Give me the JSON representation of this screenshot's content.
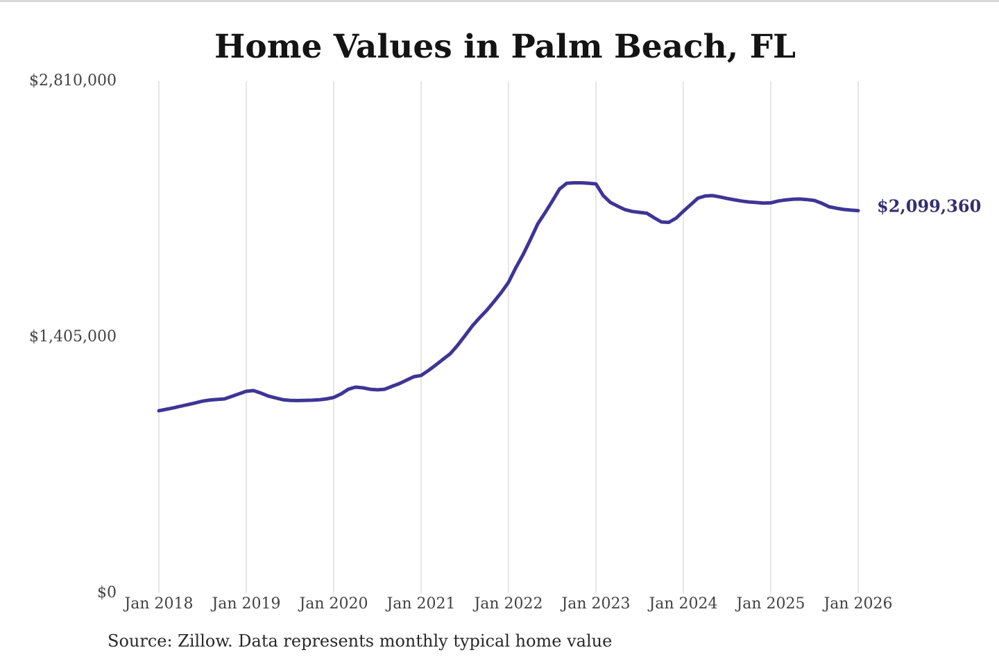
{
  "page": {
    "background_color": "#ffffff"
  },
  "chart_data": {
    "type": "line",
    "title": "Home Values in Palm Beach, FL",
    "source": "Source: Zillow. Data represents monthly typical home value",
    "latest_value_label": "$2,099,360",
    "latest_value": 2099360,
    "line_color": "#3e3596",
    "label_color": "#34306e",
    "grid_color": "#cccccc",
    "axis_label_color": "#424242",
    "grid": "vertical-only",
    "legend": "none",
    "ylim": [
      0,
      2810000
    ],
    "y_ticks": [
      {
        "label": "$2,810,000",
        "value": 2810000
      },
      {
        "label": "$1,405,000",
        "value": 1405000
      },
      {
        "label": "$0",
        "value": 0
      }
    ],
    "x_ticks": [
      {
        "label": "Jan 2018",
        "month_index": 0
      },
      {
        "label": "Jan 2019",
        "month_index": 12
      },
      {
        "label": "Jan 2020",
        "month_index": 24
      },
      {
        "label": "Jan 2021",
        "month_index": 36
      },
      {
        "label": "Jan 2022",
        "month_index": 48
      },
      {
        "label": "Jan 2023",
        "month_index": 60
      },
      {
        "label": "Jan 2024",
        "month_index": 72
      },
      {
        "label": "Jan 2025",
        "month_index": 84
      },
      {
        "label": "Jan 2026",
        "month_index": 96
      }
    ],
    "series": [
      {
        "name": "Monthly typical home value",
        "start_date": "2018-01",
        "end_date": "2026-01",
        "frequency": "monthly",
        "values": [
          1001000,
          1009000,
          1017000,
          1026000,
          1035000,
          1044000,
          1054000,
          1060000,
          1063000,
          1066000,
          1080000,
          1094000,
          1108000,
          1112000,
          1098000,
          1082000,
          1072000,
          1062000,
          1058000,
          1057000,
          1058000,
          1059000,
          1061000,
          1066000,
          1074000,
          1093000,
          1119000,
          1131000,
          1127000,
          1119000,
          1116000,
          1119000,
          1135000,
          1150000,
          1169000,
          1188000,
          1195000,
          1222000,
          1252000,
          1283000,
          1314000,
          1360000,
          1412000,
          1465000,
          1510000,
          1552000,
          1600000,
          1650000,
          1706000,
          1786000,
          1858000,
          1940000,
          2026000,
          2087000,
          2151000,
          2218000,
          2250000,
          2252000,
          2252000,
          2250000,
          2246000,
          2182000,
          2144000,
          2124000,
          2105000,
          2095000,
          2090000,
          2085000,
          2060000,
          2037000,
          2035000,
          2058000,
          2096000,
          2132000,
          2168000,
          2180000,
          2182000,
          2175000,
          2166000,
          2159000,
          2152000,
          2147000,
          2144000,
          2141000,
          2142000,
          2152000,
          2158000,
          2162000,
          2163000,
          2160000,
          2155000,
          2140000,
          2121000,
          2113000,
          2106000,
          2102000,
          2099360
        ]
      }
    ]
  }
}
